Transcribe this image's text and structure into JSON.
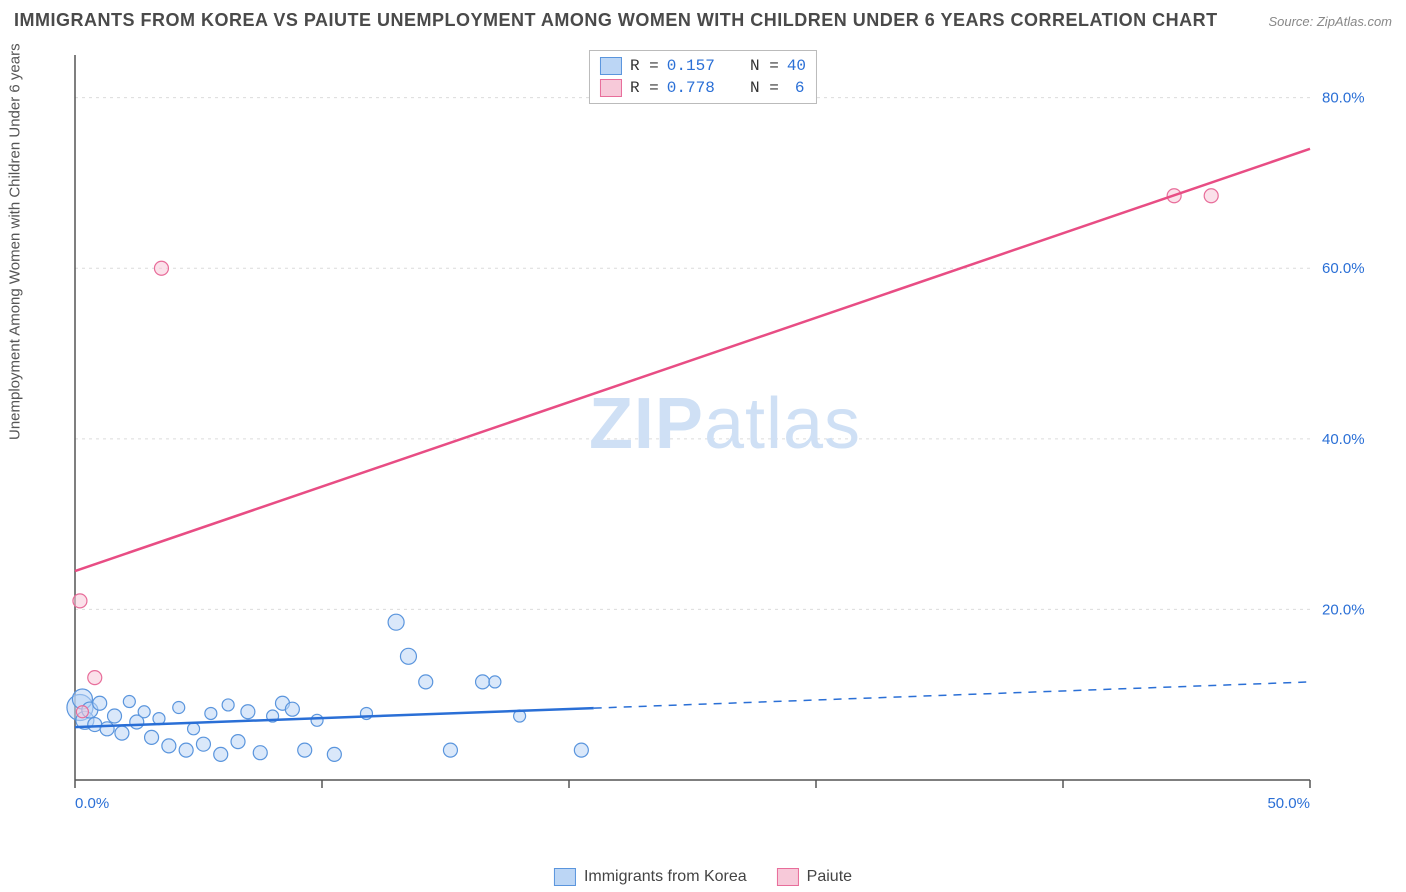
{
  "title": "IMMIGRANTS FROM KOREA VS PAIUTE UNEMPLOYMENT AMONG WOMEN WITH CHILDREN UNDER 6 YEARS CORRELATION CHART",
  "source_label": "Source: ZipAtlas.com",
  "ylabel": "Unemployment Among Women with Children Under 6 years",
  "watermark": {
    "part1": "ZIP",
    "part2": "atlas"
  },
  "chart": {
    "type": "scatter",
    "background_color": "#ffffff",
    "grid_color": "#dcdcdc",
    "axis_color": "#555555",
    "tick_label_color": "#2a6fd6",
    "tick_fontsize": 15,
    "title_fontsize": 18,
    "label_fontsize": 15,
    "xlim": [
      0,
      50
    ],
    "ylim": [
      0,
      85
    ],
    "xtick_step": 10,
    "ytick_step": 20,
    "xtick_labels": [
      "0.0%",
      "",
      "",
      "",
      "",
      "50.0%"
    ],
    "ytick_labels": [
      "",
      "20.0%",
      "40.0%",
      "60.0%",
      "80.0%"
    ],
    "series": [
      {
        "name": "Immigrants from Korea",
        "R": "0.157",
        "N": "40",
        "marker_fill": "#bcd6f5",
        "marker_stroke": "#5a95dd",
        "marker_fill_opacity": 0.55,
        "line_color": "#2a6fd6",
        "line_width": 2.5,
        "line_dash_after_x": 21,
        "trend": {
          "x1": 0,
          "y1": 6.2,
          "x2": 50,
          "y2": 11.5
        },
        "points": [
          {
            "x": 0.2,
            "y": 8.5,
            "r": 13
          },
          {
            "x": 0.3,
            "y": 9.5,
            "r": 10
          },
          {
            "x": 0.4,
            "y": 7.0,
            "r": 9
          },
          {
            "x": 0.6,
            "y": 8.2,
            "r": 8
          },
          {
            "x": 0.8,
            "y": 6.5,
            "r": 7
          },
          {
            "x": 1.0,
            "y": 9.0,
            "r": 7
          },
          {
            "x": 1.3,
            "y": 6.0,
            "r": 7
          },
          {
            "x": 1.6,
            "y": 7.5,
            "r": 7
          },
          {
            "x": 1.9,
            "y": 5.5,
            "r": 7
          },
          {
            "x": 2.2,
            "y": 9.2,
            "r": 6
          },
          {
            "x": 2.5,
            "y": 6.8,
            "r": 7
          },
          {
            "x": 2.8,
            "y": 8.0,
            "r": 6
          },
          {
            "x": 3.1,
            "y": 5.0,
            "r": 7
          },
          {
            "x": 3.4,
            "y": 7.2,
            "r": 6
          },
          {
            "x": 3.8,
            "y": 4.0,
            "r": 7
          },
          {
            "x": 4.2,
            "y": 8.5,
            "r": 6
          },
          {
            "x": 4.5,
            "y": 3.5,
            "r": 7
          },
          {
            "x": 4.8,
            "y": 6.0,
            "r": 6
          },
          {
            "x": 5.2,
            "y": 4.2,
            "r": 7
          },
          {
            "x": 5.5,
            "y": 7.8,
            "r": 6
          },
          {
            "x": 5.9,
            "y": 3.0,
            "r": 7
          },
          {
            "x": 6.2,
            "y": 8.8,
            "r": 6
          },
          {
            "x": 6.6,
            "y": 4.5,
            "r": 7
          },
          {
            "x": 7.0,
            "y": 8.0,
            "r": 7
          },
          {
            "x": 7.5,
            "y": 3.2,
            "r": 7
          },
          {
            "x": 8.0,
            "y": 7.5,
            "r": 6
          },
          {
            "x": 8.4,
            "y": 9.0,
            "r": 7
          },
          {
            "x": 8.8,
            "y": 8.3,
            "r": 7
          },
          {
            "x": 9.3,
            "y": 3.5,
            "r": 7
          },
          {
            "x": 9.8,
            "y": 7.0,
            "r": 6
          },
          {
            "x": 10.5,
            "y": 3.0,
            "r": 7
          },
          {
            "x": 11.8,
            "y": 7.8,
            "r": 6
          },
          {
            "x": 13.0,
            "y": 18.5,
            "r": 8
          },
          {
            "x": 13.5,
            "y": 14.5,
            "r": 8
          },
          {
            "x": 14.2,
            "y": 11.5,
            "r": 7
          },
          {
            "x": 15.2,
            "y": 3.5,
            "r": 7
          },
          {
            "x": 16.5,
            "y": 11.5,
            "r": 7
          },
          {
            "x": 17.0,
            "y": 11.5,
            "r": 6
          },
          {
            "x": 18.0,
            "y": 7.5,
            "r": 6
          },
          {
            "x": 20.5,
            "y": 3.5,
            "r": 7
          }
        ]
      },
      {
        "name": "Paiute",
        "R": "0.778",
        "N": "6",
        "marker_fill": "#f7c9d9",
        "marker_stroke": "#e86d9a",
        "marker_fill_opacity": 0.55,
        "line_color": "#e84d84",
        "line_width": 2.5,
        "line_dash_after_x": 9999,
        "trend": {
          "x1": 0,
          "y1": 24.5,
          "x2": 50,
          "y2": 74.0
        },
        "points": [
          {
            "x": 0.2,
            "y": 21.0,
            "r": 7
          },
          {
            "x": 0.8,
            "y": 12.0,
            "r": 7
          },
          {
            "x": 0.3,
            "y": 8.0,
            "r": 6
          },
          {
            "x": 3.5,
            "y": 60.0,
            "r": 7
          },
          {
            "x": 44.5,
            "y": 68.5,
            "r": 7
          },
          {
            "x": 46.0,
            "y": 68.5,
            "r": 7
          }
        ]
      }
    ]
  },
  "legend_top": {
    "r_prefix": "R = ",
    "n_prefix": "N = "
  },
  "legend_bottom": {
    "series1": "Immigrants from Korea",
    "series2": "Paiute"
  }
}
